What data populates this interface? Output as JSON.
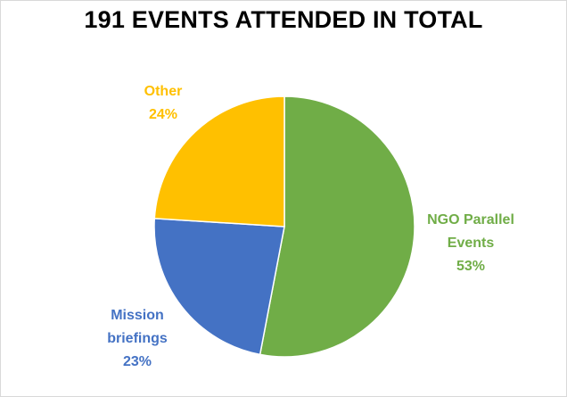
{
  "chart_data": {
    "type": "pie",
    "title": "191 EVENTS ATTENDED IN TOTAL",
    "slices": [
      {
        "label": "NGO Parallel Events",
        "value": 53,
        "display": "53%",
        "color": "#70ad47"
      },
      {
        "label": "Mission briefings",
        "value": 23,
        "display": "23%",
        "color": "#4472c4"
      },
      {
        "label": "Other",
        "value": 24,
        "display": "24%",
        "color": "#ffc000"
      }
    ],
    "start_angle_deg": 0,
    "direction": "clockwise",
    "legend": "none",
    "data_labels": "outside, category name and percentage, colored like slice"
  }
}
